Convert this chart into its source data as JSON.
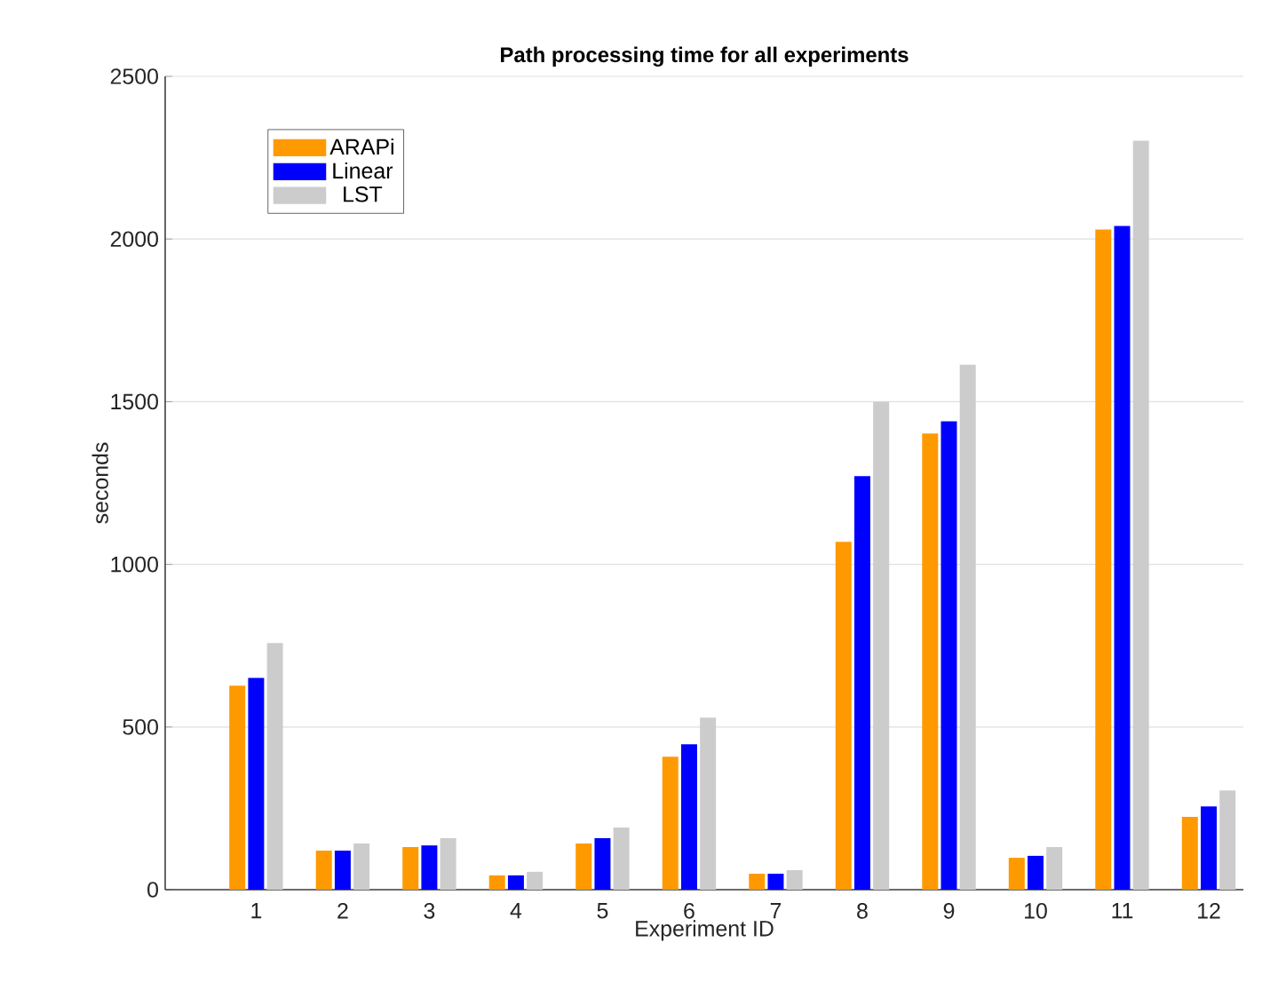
{
  "chart_data": {
    "type": "bar",
    "title": "Path processing time for all experiments",
    "xlabel": "Experiment ID",
    "ylabel": "seconds",
    "categories": [
      "1",
      "2",
      "3",
      "4",
      "5",
      "6",
      "7",
      "8",
      "9",
      "10",
      "11",
      "12"
    ],
    "series": [
      {
        "name": "ARAPi",
        "color": "#ff9900",
        "values": [
          627,
          120,
          131,
          44,
          142,
          409,
          49,
          1069,
          1402,
          98,
          2029,
          224
        ]
      },
      {
        "name": "Linear",
        "color": "#0000ff",
        "values": [
          651,
          120,
          136,
          44,
          158,
          447,
          49,
          1271,
          1440,
          104,
          2040,
          256
        ]
      },
      {
        "name": "LST",
        "color": "#cccccc",
        "values": [
          758,
          142,
          158,
          55,
          191,
          529,
          60,
          1500,
          1614,
          131,
          2302,
          305
        ]
      }
    ],
    "ylim": [
      0,
      2500
    ],
    "yticks": [
      0,
      500,
      1000,
      1500,
      2000,
      2500
    ],
    "grid": "y",
    "legend": "top left"
  }
}
